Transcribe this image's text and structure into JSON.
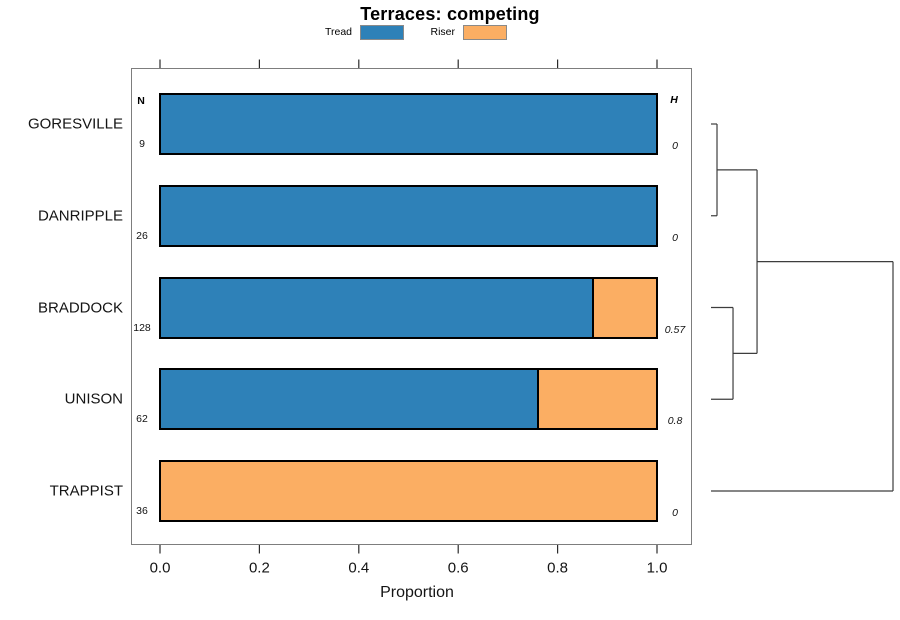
{
  "title": "Terraces: competing",
  "legend": {
    "items": [
      {
        "label": "Tread",
        "color": "#2E81B8"
      },
      {
        "label": "Riser",
        "color": "#FBAE63"
      }
    ]
  },
  "table": {
    "n_header": "N",
    "h_header": "H"
  },
  "axis": {
    "label": "Proportion",
    "ticks": [
      {
        "value": 0.0,
        "label": "0.0"
      },
      {
        "value": 0.2,
        "label": "0.2"
      },
      {
        "value": 0.4,
        "label": "0.4"
      },
      {
        "value": 0.6,
        "label": "0.6"
      },
      {
        "value": 0.8,
        "label": "0.8"
      },
      {
        "value": 1.0,
        "label": "1.0"
      }
    ]
  },
  "chart_data": {
    "type": "bar",
    "orientation": "horizontal",
    "stacked": true,
    "title": "Terraces: competing",
    "xlabel": "Proportion",
    "xlim": [
      0,
      1
    ],
    "grid": false,
    "legend_position": "top",
    "categories": [
      "GORESVILLE",
      "DANRIPPLE",
      "BRADDOCK",
      "UNISON",
      "TRAPPIST"
    ],
    "series": [
      {
        "name": "Tread",
        "color": "#2E81B8",
        "values": [
          1.0,
          1.0,
          0.87,
          0.76,
          0.0
        ]
      },
      {
        "name": "Riser",
        "color": "#FBAE63",
        "values": [
          0.0,
          0.0,
          0.13,
          0.24,
          1.0
        ]
      }
    ],
    "n_values": [
      "9",
      "26",
      "128",
      "62",
      "36"
    ],
    "h_values": [
      "0",
      "0",
      "0.57",
      "0.8",
      "0"
    ],
    "dendrogram": {
      "side": "right",
      "leaves": [
        "GORESVILLE",
        "DANRIPPLE",
        "BRADDOCK",
        "UNISON",
        "TRAPPIST"
      ],
      "merges": [
        {
          "members": [
            "GORESVILLE",
            "DANRIPPLE"
          ],
          "height": 0.033
        },
        {
          "members": [
            "BRADDOCK",
            "UNISON"
          ],
          "height": 0.121
        },
        {
          "members": [
            "GORESVILLE+DANRIPPLE",
            "BRADDOCK+UNISON"
          ],
          "height": 0.253
        },
        {
          "members": [
            "GORESVILLE+DANRIPPLE+BRADDOCK+UNISON",
            "TRAPPIST"
          ],
          "height": 1.0
        }
      ],
      "segments": [
        [
          0,
          0,
          0.033,
          0
        ],
        [
          0,
          1,
          0.033,
          1
        ],
        [
          0.033,
          0,
          0.033,
          1
        ],
        [
          0.033,
          0.5,
          0.253,
          0.5
        ],
        [
          0,
          2,
          0.121,
          2
        ],
        [
          0,
          3,
          0.121,
          3
        ],
        [
          0.121,
          2,
          0.121,
          3
        ],
        [
          0.121,
          2.5,
          0.253,
          2.5
        ],
        [
          0.253,
          0.5,
          0.253,
          2.5
        ],
        [
          0.253,
          1.5,
          1.0,
          1.5
        ],
        [
          0,
          4,
          1.0,
          4
        ],
        [
          1.0,
          1.5,
          1.0,
          4
        ]
      ]
    }
  }
}
